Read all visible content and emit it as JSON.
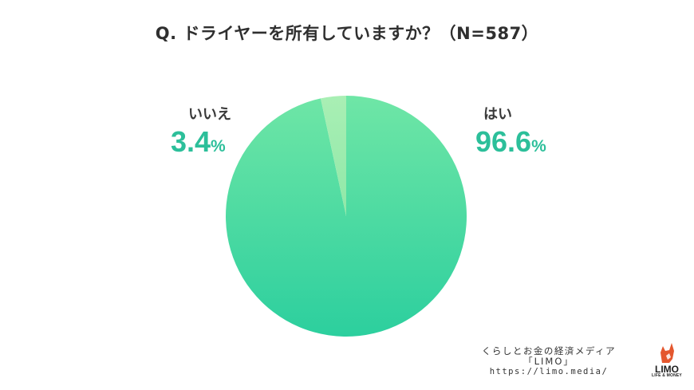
{
  "chart_data": {
    "type": "pie",
    "title": "Q. ドライヤーを所有していますか？（N=587）",
    "categories": [
      "はい",
      "いいえ"
    ],
    "values": [
      96.6,
      3.4
    ],
    "value_labels": [
      "96.6",
      "3.4"
    ],
    "unit": "%",
    "colors": [
      "#3fd3a3",
      "#a6edb2"
    ],
    "legend": "none"
  },
  "branding": {
    "line1": "くらしとお金の経済メディア",
    "line2": "「LIMO」",
    "url": "https://limo.media/",
    "logo": "LIMO",
    "logo_sub": "LIFE & MONEY",
    "logo_icon": "fox-icon",
    "logo_color": "#e4572e"
  }
}
